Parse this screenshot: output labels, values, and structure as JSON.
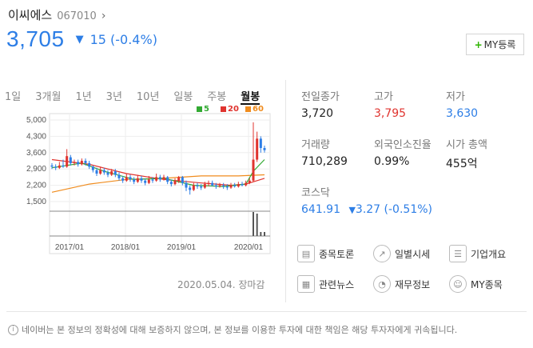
{
  "stock": {
    "name": "이씨에스",
    "code": "067010",
    "price": "3,705",
    "change": "15 (-0.4%)",
    "my_button": "MY등록"
  },
  "range_tabs": [
    "1일",
    "3개월",
    "1년",
    "3년",
    "10년",
    "일봉",
    "주봉",
    "월봉"
  ],
  "active_tab": "월봉",
  "legend": [
    {
      "label": "5",
      "color": "#33aa33"
    },
    {
      "label": "20",
      "color": "#e0342f"
    },
    {
      "label": "60",
      "color": "#f08c1e"
    }
  ],
  "stats": {
    "prev_close": {
      "label": "전일종가",
      "value": "3,720"
    },
    "high": {
      "label": "고가",
      "value": "3,795"
    },
    "low": {
      "label": "저가",
      "value": "3,630"
    },
    "volume": {
      "label": "거래량",
      "value": "710,289"
    },
    "foreign_ratio": {
      "label": "외국인소진율",
      "value": "0.99%"
    },
    "market_cap": {
      "label": "시가 총액",
      "value": "455억"
    }
  },
  "kospi": {
    "label": "코스닥",
    "value": "641.91",
    "change": "3.27 (-0.51%)"
  },
  "links": [
    {
      "label": "종목토론",
      "icon": "chat-icon"
    },
    {
      "label": "일별시세",
      "icon": "trend-icon"
    },
    {
      "label": "기업개요",
      "icon": "document-icon"
    },
    {
      "label": "관련뉴스",
      "icon": "news-icon"
    },
    {
      "label": "재무정보",
      "icon": "pie-icon"
    },
    {
      "label": "MY종목",
      "icon": "user-icon"
    }
  ],
  "timestamp": "2020.05.04. 장마감",
  "notice": "네이버는 본 정보의 정확성에 대해 보증하지 않으며, 본 정보를 이용한 투자에 대한 책임은 해당 투자자에게 귀속됩니다.",
  "colors": {
    "up": "#e0342f",
    "down": "#2d7ee6",
    "accent": "#2db400"
  },
  "chart_data": {
    "type": "candlestick",
    "y_ticks": [
      "5,000",
      "4,300",
      "3,600",
      "2,900",
      "2,200",
      "1,500"
    ],
    "x_ticks": [
      "2017/01",
      "2018/01",
      "2019/01",
      "2020/01"
    ],
    "ylim": [
      1500,
      5000
    ],
    "candles": [
      {
        "o": 3050,
        "c": 3000,
        "h": 3150,
        "l": 2900
      },
      {
        "o": 3000,
        "c": 2950,
        "h": 3100,
        "l": 2850
      },
      {
        "o": 2950,
        "c": 3050,
        "h": 3200,
        "l": 2900
      },
      {
        "o": 3050,
        "c": 3000,
        "h": 3300,
        "l": 2950
      },
      {
        "o": 3000,
        "c": 3450,
        "h": 3750,
        "l": 2950
      },
      {
        "o": 3400,
        "c": 3150,
        "h": 3500,
        "l": 3050
      },
      {
        "o": 3150,
        "c": 3200,
        "h": 3300,
        "l": 3050
      },
      {
        "o": 3200,
        "c": 3100,
        "h": 3300,
        "l": 3000
      },
      {
        "o": 3100,
        "c": 3250,
        "h": 3350,
        "l": 3050
      },
      {
        "o": 3250,
        "c": 3150,
        "h": 3350,
        "l": 3050
      },
      {
        "o": 3150,
        "c": 3000,
        "h": 3250,
        "l": 2900
      },
      {
        "o": 3000,
        "c": 2850,
        "h": 3050,
        "l": 2750
      },
      {
        "o": 2850,
        "c": 2700,
        "h": 2950,
        "l": 2600
      },
      {
        "o": 2700,
        "c": 2850,
        "h": 3000,
        "l": 2650
      },
      {
        "o": 2850,
        "c": 2750,
        "h": 2950,
        "l": 2650
      },
      {
        "o": 2750,
        "c": 2650,
        "h": 2850,
        "l": 2550
      },
      {
        "o": 2650,
        "c": 2800,
        "h": 2900,
        "l": 2600
      },
      {
        "o": 2800,
        "c": 2650,
        "h": 2900,
        "l": 2550
      },
      {
        "o": 2650,
        "c": 2500,
        "h": 2750,
        "l": 2400
      },
      {
        "o": 2500,
        "c": 2400,
        "h": 2600,
        "l": 2300
      },
      {
        "o": 2400,
        "c": 2550,
        "h": 2700,
        "l": 2350
      },
      {
        "o": 2550,
        "c": 2450,
        "h": 2650,
        "l": 2350
      },
      {
        "o": 2450,
        "c": 2350,
        "h": 2550,
        "l": 2250
      },
      {
        "o": 2350,
        "c": 2500,
        "h": 2650,
        "l": 2300
      },
      {
        "o": 2500,
        "c": 2400,
        "h": 2600,
        "l": 2300
      },
      {
        "o": 2400,
        "c": 2300,
        "h": 2500,
        "l": 2200
      },
      {
        "o": 2300,
        "c": 2450,
        "h": 2600,
        "l": 2250
      },
      {
        "o": 2450,
        "c": 2400,
        "h": 2550,
        "l": 2300
      },
      {
        "o": 2400,
        "c": 2550,
        "h": 2700,
        "l": 2350
      },
      {
        "o": 2550,
        "c": 2450,
        "h": 2650,
        "l": 2350
      },
      {
        "o": 2450,
        "c": 2550,
        "h": 2650,
        "l": 2400
      },
      {
        "o": 2550,
        "c": 2350,
        "h": 2600,
        "l": 2250
      },
      {
        "o": 2350,
        "c": 2250,
        "h": 2450,
        "l": 2150
      },
      {
        "o": 2250,
        "c": 2400,
        "h": 2500,
        "l": 2200
      },
      {
        "o": 2400,
        "c": 2550,
        "h": 2600,
        "l": 2300
      },
      {
        "o": 2550,
        "c": 2300,
        "h": 2600,
        "l": 2200
      },
      {
        "o": 2300,
        "c": 2100,
        "h": 2400,
        "l": 1950
      },
      {
        "o": 2100,
        "c": 2000,
        "h": 2200,
        "l": 1800
      },
      {
        "o": 2000,
        "c": 2200,
        "h": 2300,
        "l": 1950
      },
      {
        "o": 2200,
        "c": 2150,
        "h": 2300,
        "l": 2050
      },
      {
        "o": 2150,
        "c": 2100,
        "h": 2250,
        "l": 2000
      },
      {
        "o": 2100,
        "c": 2250,
        "h": 2350,
        "l": 2050
      },
      {
        "o": 2250,
        "c": 2300,
        "h": 2400,
        "l": 2150
      },
      {
        "o": 2300,
        "c": 2200,
        "h": 2400,
        "l": 2150
      },
      {
        "o": 2200,
        "c": 2150,
        "h": 2300,
        "l": 2050
      },
      {
        "o": 2150,
        "c": 2200,
        "h": 2300,
        "l": 2100
      },
      {
        "o": 2200,
        "c": 2150,
        "h": 2300,
        "l": 2050
      },
      {
        "o": 2150,
        "c": 2100,
        "h": 2250,
        "l": 2000
      },
      {
        "o": 2100,
        "c": 2200,
        "h": 2300,
        "l": 2050
      },
      {
        "o": 2200,
        "c": 2150,
        "h": 2300,
        "l": 2100
      },
      {
        "o": 2150,
        "c": 2250,
        "h": 2350,
        "l": 2100
      },
      {
        "o": 2250,
        "c": 2200,
        "h": 2350,
        "l": 2150
      },
      {
        "o": 2200,
        "c": 2300,
        "h": 2400,
        "l": 2150
      },
      {
        "o": 2300,
        "c": 2400,
        "h": 2500,
        "l": 2250
      },
      {
        "o": 2400,
        "c": 3300,
        "h": 4900,
        "l": 2350
      },
      {
        "o": 3300,
        "c": 4200,
        "h": 4500,
        "l": 3200
      },
      {
        "o": 4200,
        "c": 3800,
        "h": 4300,
        "l": 3600
      },
      {
        "o": 3800,
        "c": 3705,
        "h": 3900,
        "l": 3600
      }
    ],
    "ma5": [
      [
        0,
        2950
      ],
      [
        8,
        3150
      ],
      [
        14,
        2800
      ],
      [
        22,
        2450
      ],
      [
        30,
        2500
      ],
      [
        38,
        2200
      ],
      [
        46,
        2150
      ],
      [
        52,
        2250
      ],
      [
        54,
        2800
      ],
      [
        57,
        3300
      ]
    ],
    "ma20": [
      [
        0,
        3300
      ],
      [
        10,
        3100
      ],
      [
        20,
        2700
      ],
      [
        30,
        2450
      ],
      [
        40,
        2300
      ],
      [
        48,
        2200
      ],
      [
        52,
        2250
      ],
      [
        55,
        2400
      ],
      [
        57,
        2500
      ]
    ],
    "ma60": [
      [
        0,
        1900
      ],
      [
        10,
        2250
      ],
      [
        20,
        2450
      ],
      [
        30,
        2500
      ],
      [
        40,
        2600
      ],
      [
        50,
        2600
      ],
      [
        57,
        2650
      ]
    ],
    "volume": [
      0,
      0,
      0,
      0,
      0,
      0,
      0,
      0,
      0,
      0,
      0,
      0,
      0,
      0,
      0,
      0,
      0,
      0,
      0,
      0,
      0,
      0,
      0,
      0,
      0,
      0,
      0,
      0,
      0,
      0,
      0,
      0,
      0,
      0,
      0,
      0,
      0,
      0,
      0,
      0,
      0,
      0,
      0,
      0,
      0,
      0,
      0,
      0,
      0,
      0,
      0,
      0,
      0,
      0,
      30,
      28,
      5,
      5
    ]
  }
}
